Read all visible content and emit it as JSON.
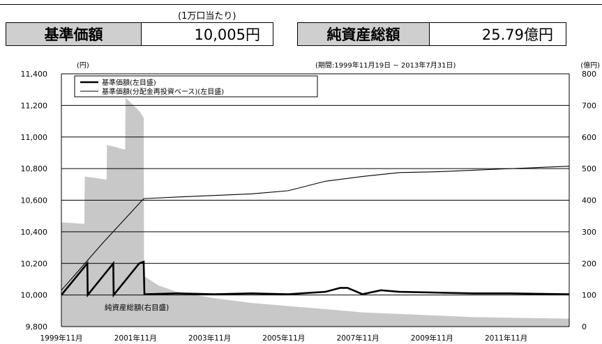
{
  "header": {
    "unit_note": "(1万口当たり)",
    "nav_label": "基準価額",
    "nav_value": "10,005円",
    "assets_label": "純資産総額",
    "assets_value": "25.79億円"
  },
  "chart_data": {
    "type": "line",
    "period_label": "(期間:1999年11月19日 ~ 2013年7月31日)",
    "y_left_unit": "(円)",
    "y_right_unit": "(億円)",
    "ylim_left": [
      9800,
      11400
    ],
    "ylim_right": [
      0,
      800
    ],
    "y_left_ticks": [
      "11,400",
      "11,200",
      "11,000",
      "10,800",
      "10,600",
      "10,400",
      "10,200",
      "10,000",
      "9,800"
    ],
    "y_right_ticks": [
      "800",
      "700",
      "600",
      "500",
      "400",
      "300",
      "200",
      "100",
      "0"
    ],
    "x_tick_labels": [
      "1999年11月",
      "2001年11月",
      "2003年11月",
      "2005年11月",
      "2007年11月",
      "2009年11月",
      "2011年11月"
    ],
    "x_range": [
      1999.88,
      2013.58
    ],
    "grid": "horizontal",
    "legend": [
      "基準価額(左目盛)",
      "基準価額(分配金再投資ベース)(左目盛)"
    ],
    "area_label": "純資産総額(右目盛)",
    "series": [
      {
        "name": "基準価額(左目盛)",
        "axis": "left",
        "style": "thick",
        "x": [
          1999.88,
          2000.58,
          2000.59,
          2001.28,
          2001.29,
          2001.98,
          2002.1,
          2002.12,
          2003.0,
          2004.0,
          2005.0,
          2006.0,
          2007.0,
          2007.4,
          2007.6,
          2008.0,
          2008.5,
          2009.0,
          2010.0,
          2011.0,
          2012.0,
          2013.58
        ],
        "y": [
          10000,
          10200,
          10000,
          10200,
          10000,
          10200,
          10210,
          10005,
          10010,
          10005,
          10010,
          10005,
          10020,
          10045,
          10045,
          10005,
          10030,
          10020,
          10015,
          10010,
          10010,
          10005
        ]
      },
      {
        "name": "基準価額(分配金再投資ベース)(左目盛)",
        "axis": "left",
        "style": "thin",
        "x": [
          1999.88,
          2001.0,
          2002.1,
          2003.0,
          2004.0,
          2005.0,
          2006.0,
          2007.0,
          2008.0,
          2009.0,
          2010.0,
          2011.0,
          2012.0,
          2013.58
        ],
        "y": [
          10030,
          10330,
          10610,
          10620,
          10630,
          10640,
          10660,
          10720,
          10750,
          10775,
          10780,
          10790,
          10800,
          10815
        ]
      },
      {
        "name": "純資産総額(右目盛)",
        "axis": "right",
        "type": "area",
        "x": [
          1999.88,
          2000.5,
          2000.51,
          2001.1,
          2001.11,
          2001.6,
          2001.61,
          2002.0,
          2002.1,
          2002.11,
          2002.5,
          2003.0,
          2004.0,
          2005.0,
          2006.0,
          2007.0,
          2008.0,
          2009.0,
          2010.0,
          2011.0,
          2012.0,
          2013.58
        ],
        "y": [
          330,
          325,
          475,
          465,
          575,
          560,
          725,
          680,
          660,
          160,
          130,
          110,
          90,
          75,
          65,
          55,
          45,
          40,
          35,
          30,
          28,
          25
        ]
      }
    ]
  }
}
